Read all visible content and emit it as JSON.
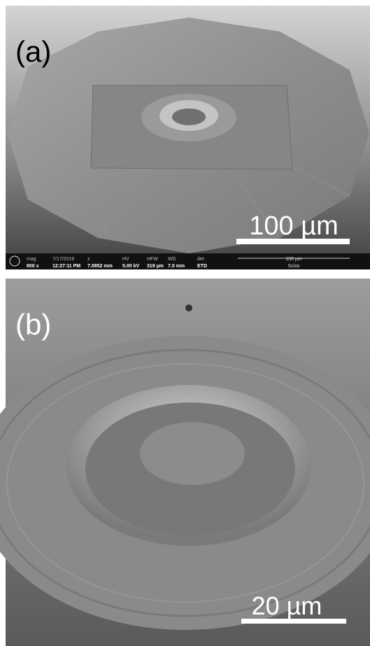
{
  "panels": [
    {
      "label": "(a)",
      "scale_bar": "100 µm",
      "info_bar": {
        "fields": [
          {
            "name": "mag",
            "value": "650 x"
          },
          {
            "name": "7/17/2019",
            "value": "12:27:11 PM"
          },
          {
            "name": "z",
            "value": "7.0852 mm"
          },
          {
            "name": "HV",
            "value": "5.00 kV"
          },
          {
            "name": "HFW",
            "value": "319 µm"
          },
          {
            "name": "WD",
            "value": "7.0 mm"
          },
          {
            "name": "det",
            "value": "ETD"
          }
        ],
        "scale_bar": "100 µm",
        "instrument": "Scios"
      }
    },
    {
      "label": "(b)",
      "scale_bar": "20 µm"
    }
  ]
}
